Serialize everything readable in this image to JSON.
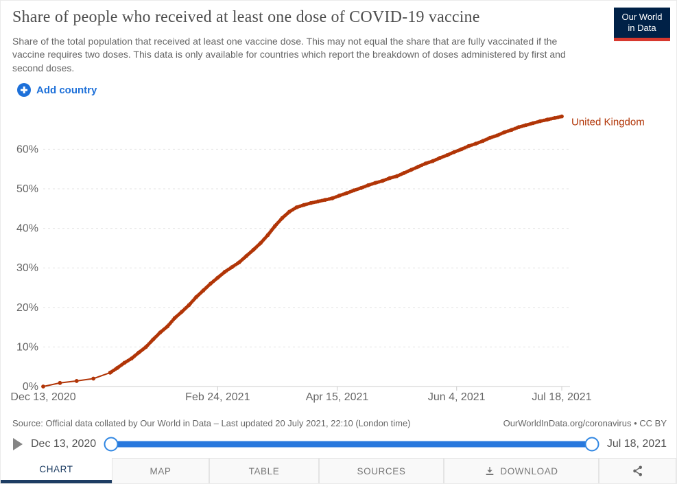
{
  "header": {
    "title": "Share of people who received at least one dose of COVID-19 vaccine",
    "subtitle": "Share of the total population that received at least one vaccine dose. This may not equal the share that are fully vaccinated if the vaccine requires two doses. This data is only available for countries which report the breakdown of doses administered by first and second doses.",
    "logo": {
      "line1": "Our World",
      "line2": "in Data"
    }
  },
  "controls": {
    "add_country_label": "Add country"
  },
  "chart_data": {
    "type": "line",
    "title": "Share of people who received at least one dose of COVID-19 vaccine",
    "entity_label": "United Kingdom",
    "xlabel": "",
    "ylabel": "",
    "ylim": [
      0,
      70
    ],
    "y_ticks": [
      0,
      10,
      20,
      30,
      40,
      50,
      60
    ],
    "y_tick_suffix": "%",
    "grid": "dashed-horizontal",
    "legend_position": "end-of-line",
    "x_range": [
      "2020-12-13",
      "2021-07-18"
    ],
    "x_ticks": [
      {
        "label": "Dec 13, 2020",
        "date": "2020-12-13"
      },
      {
        "label": "Feb 24, 2021",
        "date": "2021-02-24"
      },
      {
        "label": "Apr 15, 2021",
        "date": "2021-04-15"
      },
      {
        "label": "Jun 4, 2021",
        "date": "2021-06-04"
      },
      {
        "label": "Jul 18, 2021",
        "date": "2021-07-18"
      }
    ],
    "series": [
      {
        "name": "United Kingdom",
        "color": "#b13507",
        "points": [
          [
            "2020-12-13",
            0.0
          ],
          [
            "2020-12-20",
            0.9
          ],
          [
            "2020-12-27",
            1.4
          ],
          [
            "2021-01-03",
            2.0
          ],
          [
            "2021-01-10",
            3.5
          ],
          [
            "2021-01-13",
            4.7
          ],
          [
            "2021-01-16",
            6.0
          ],
          [
            "2021-01-19",
            7.1
          ],
          [
            "2021-01-22",
            8.6
          ],
          [
            "2021-01-25",
            10.0
          ],
          [
            "2021-01-28",
            11.9
          ],
          [
            "2021-01-31",
            13.7
          ],
          [
            "2021-02-03",
            15.2
          ],
          [
            "2021-02-06",
            17.3
          ],
          [
            "2021-02-09",
            18.9
          ],
          [
            "2021-02-12",
            20.6
          ],
          [
            "2021-02-15",
            22.6
          ],
          [
            "2021-02-18",
            24.3
          ],
          [
            "2021-02-21",
            26.0
          ],
          [
            "2021-02-24",
            27.5
          ],
          [
            "2021-02-27",
            29.0
          ],
          [
            "2021-03-02",
            30.2
          ],
          [
            "2021-03-05",
            31.4
          ],
          [
            "2021-03-08",
            33.0
          ],
          [
            "2021-03-11",
            34.6
          ],
          [
            "2021-03-14",
            36.3
          ],
          [
            "2021-03-17",
            38.3
          ],
          [
            "2021-03-20",
            40.6
          ],
          [
            "2021-03-23",
            42.6
          ],
          [
            "2021-03-26",
            44.2
          ],
          [
            "2021-03-29",
            45.3
          ],
          [
            "2021-04-01",
            45.9
          ],
          [
            "2021-04-04",
            46.4
          ],
          [
            "2021-04-07",
            46.8
          ],
          [
            "2021-04-10",
            47.2
          ],
          [
            "2021-04-13",
            47.6
          ],
          [
            "2021-04-16",
            48.3
          ],
          [
            "2021-04-19",
            48.9
          ],
          [
            "2021-04-22",
            49.6
          ],
          [
            "2021-04-25",
            50.2
          ],
          [
            "2021-04-28",
            50.9
          ],
          [
            "2021-05-01",
            51.5
          ],
          [
            "2021-05-04",
            52.0
          ],
          [
            "2021-05-07",
            52.7
          ],
          [
            "2021-05-10",
            53.2
          ],
          [
            "2021-05-13",
            54.0
          ],
          [
            "2021-05-16",
            54.8
          ],
          [
            "2021-05-19",
            55.6
          ],
          [
            "2021-05-22",
            56.4
          ],
          [
            "2021-05-25",
            57.0
          ],
          [
            "2021-05-28",
            57.8
          ],
          [
            "2021-05-31",
            58.5
          ],
          [
            "2021-06-03",
            59.3
          ],
          [
            "2021-06-06",
            60.0
          ],
          [
            "2021-06-09",
            60.8
          ],
          [
            "2021-06-12",
            61.4
          ],
          [
            "2021-06-15",
            62.1
          ],
          [
            "2021-06-18",
            62.9
          ],
          [
            "2021-06-21",
            63.5
          ],
          [
            "2021-06-24",
            64.3
          ],
          [
            "2021-06-27",
            64.9
          ],
          [
            "2021-06-30",
            65.6
          ],
          [
            "2021-07-03",
            66.1
          ],
          [
            "2021-07-06",
            66.6
          ],
          [
            "2021-07-09",
            67.1
          ],
          [
            "2021-07-12",
            67.5
          ],
          [
            "2021-07-15",
            67.9
          ],
          [
            "2021-07-18",
            68.3
          ]
        ]
      }
    ]
  },
  "footer": {
    "source": "Source: Official data collated by Our World in Data – Last updated 20 July 2021, 22:10 (London time)",
    "link": "OurWorldInData.org/coronavirus • CC BY"
  },
  "timeline": {
    "start_label": "Dec 13, 2020",
    "end_label": "Jul 18, 2021"
  },
  "tabs": {
    "chart": "CHART",
    "map": "MAP",
    "table": "TABLE",
    "sources": "SOURCES",
    "download": "DOWNLOAD"
  },
  "colors": {
    "line": "#b13507",
    "accent_blue": "#1d70d9",
    "slider_blue": "#2878dd",
    "active_tab_navy": "#1d3d63",
    "logo_bg": "#002147",
    "logo_red": "#d7382e",
    "grid": "#e3e3e3",
    "axis": "#cccccc",
    "tick_text": "#666666"
  }
}
